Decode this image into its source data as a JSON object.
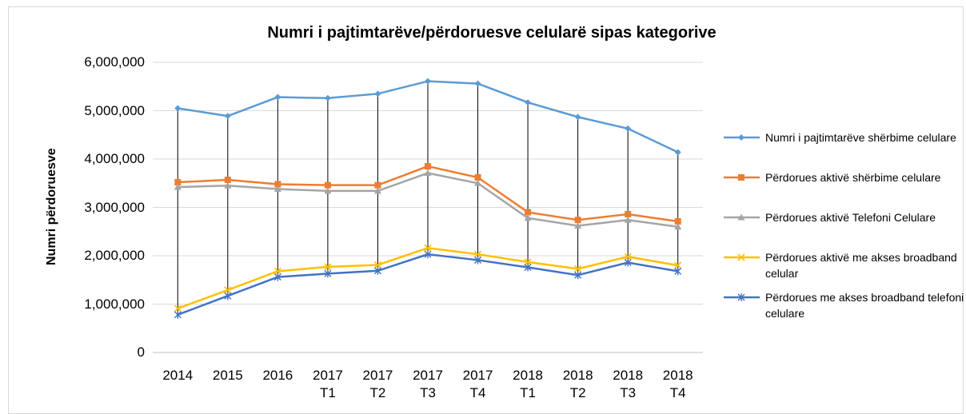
{
  "chart_data": {
    "type": "line",
    "title": "Numri i pajtimtarëve/përdoruesve celularë sipas kategorive",
    "y_label": "Numri përdoruesve",
    "categories": [
      "2014",
      "2015",
      "2016",
      "2017 T1",
      "2017 T2",
      "2017 T3",
      "2017 T4",
      "2018 T1",
      "2018 T2",
      "2018 T3",
      "2018 T4"
    ],
    "series": [
      {
        "name": "Numri i pajtimtarëve shërbime celulare",
        "color": "#5b9bd5",
        "marker": "diamond",
        "values": [
          5050000,
          4890000,
          5280000,
          5260000,
          5350000,
          5610000,
          5560000,
          5170000,
          4870000,
          4630000,
          4140000
        ]
      },
      {
        "name": "Përdorues aktivë shërbime celulare",
        "color": "#ed7d31",
        "marker": "square",
        "values": [
          3520000,
          3570000,
          3480000,
          3460000,
          3460000,
          3850000,
          3620000,
          2900000,
          2740000,
          2860000,
          2710000
        ]
      },
      {
        "name": "Përdorues aktivë Telefoni Celulare",
        "color": "#a5a5a5",
        "marker": "triangle",
        "values": [
          3420000,
          3450000,
          3380000,
          3340000,
          3340000,
          3710000,
          3500000,
          2780000,
          2620000,
          2740000,
          2600000
        ]
      },
      {
        "name": "Përdorues aktivë me akses broadband celular",
        "color": "#ffc000",
        "marker": "x",
        "values": [
          910000,
          1290000,
          1680000,
          1770000,
          1810000,
          2160000,
          2030000,
          1870000,
          1730000,
          1980000,
          1800000
        ]
      },
      {
        "name": "Përdorues  me akses broadband telefoni celulare",
        "color": "#4472c4",
        "marker": "star",
        "values": [
          780000,
          1170000,
          1560000,
          1630000,
          1690000,
          2030000,
          1910000,
          1760000,
          1600000,
          1860000,
          1680000
        ]
      }
    ],
    "ylim": [
      0,
      6000000
    ],
    "yticks": [
      0,
      {
        "value": 1000000,
        "label": "1,000,000"
      },
      {
        "value": 2000000,
        "label": "2,000,000"
      },
      {
        "value": 3000000,
        "label": "3,000,000"
      },
      {
        "value": 4000000,
        "label": "4,000,000"
      },
      {
        "value": 5000000,
        "label": "5,000,000"
      },
      {
        "value": 6000000,
        "label": "6,000,000"
      }
    ],
    "grid": true,
    "high_low_lines": true,
    "legend": "right"
  }
}
